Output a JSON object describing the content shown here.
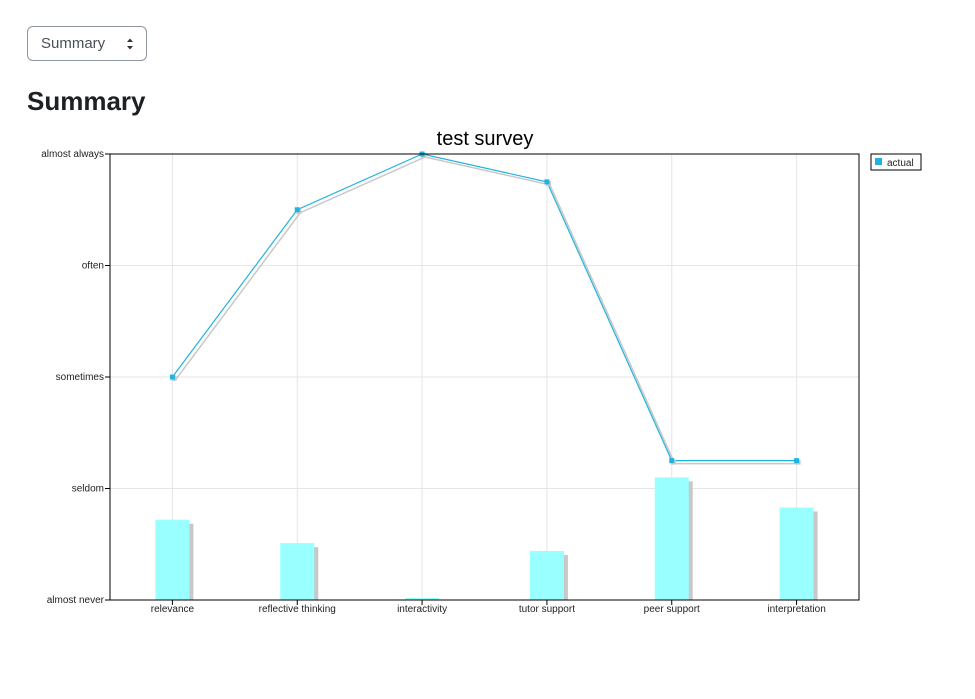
{
  "selector": {
    "value": "Summary"
  },
  "page": {
    "heading": "Summary"
  },
  "colors": {
    "line": "#1fb4df",
    "bar": "#99ffff",
    "shadow": "#c8c8c8",
    "grid": "#e6e6e6",
    "legend_marker": "#1fb4df"
  },
  "icons": {
    "select": "chevron-up-down-icon"
  },
  "chart_data": {
    "type": "line+bar",
    "title": "test survey",
    "categories": [
      "relevance",
      "reflective thinking",
      "interactivity",
      "tutor support",
      "peer support",
      "interpretation"
    ],
    "y_levels": [
      "almost never",
      "seldom",
      "sometimes",
      "often",
      "almost always"
    ],
    "ylim": [
      1,
      5
    ],
    "series": [
      {
        "name": "actual",
        "type": "line",
        "values": [
          3.0,
          4.5,
          5.0,
          4.75,
          2.25,
          2.25
        ]
      }
    ],
    "bars": [
      0.72,
      0.51,
      0.0,
      0.44,
      1.1,
      0.83
    ],
    "grid": true,
    "legend_position": "top-right"
  }
}
